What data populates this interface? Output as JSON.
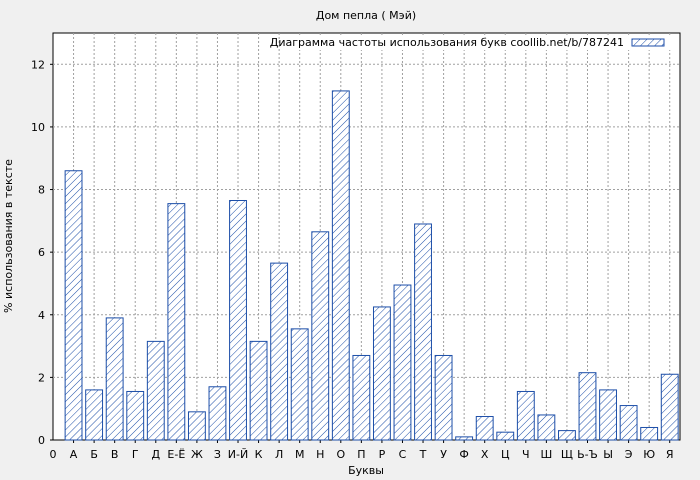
{
  "chart_data": {
    "type": "bar",
    "title": "Дом пепла ( Мэй)",
    "xlabel": "Буквы",
    "ylabel": "% использования в тексте",
    "legend": {
      "label": "Диаграмма частоты использования букв coollib.net/b/787241",
      "placement": "top-right"
    },
    "ylim": [
      0,
      13
    ],
    "yticks": [
      0,
      2,
      4,
      6,
      8,
      10,
      12
    ],
    "grid": true,
    "axis_origin_label": "0",
    "categories": [
      "А",
      "Б",
      "В",
      "Г",
      "Д",
      "Е-Ё",
      "Ж",
      "З",
      "И-Й",
      "К",
      "Л",
      "М",
      "Н",
      "О",
      "П",
      "Р",
      "С",
      "Т",
      "У",
      "Ф",
      "Х",
      "Ц",
      "Ч",
      "Ш",
      "Щ",
      "Ь-Ъ",
      "Ы",
      "Э",
      "Ю",
      "Я"
    ],
    "values": [
      8.6,
      1.6,
      3.9,
      1.55,
      3.15,
      7.55,
      0.9,
      1.7,
      7.65,
      3.15,
      5.65,
      3.55,
      6.65,
      11.15,
      2.7,
      4.25,
      4.95,
      6.9,
      2.7,
      0.1,
      0.75,
      0.25,
      1.55,
      0.8,
      0.3,
      2.15,
      1.6,
      1.1,
      0.4,
      2.1
    ],
    "colors": {
      "bar_stroke": "#1c4ea8",
      "hatch": "#1c4ea8",
      "background": "#f0f0f0",
      "plot_background": "#ffffff"
    }
  }
}
